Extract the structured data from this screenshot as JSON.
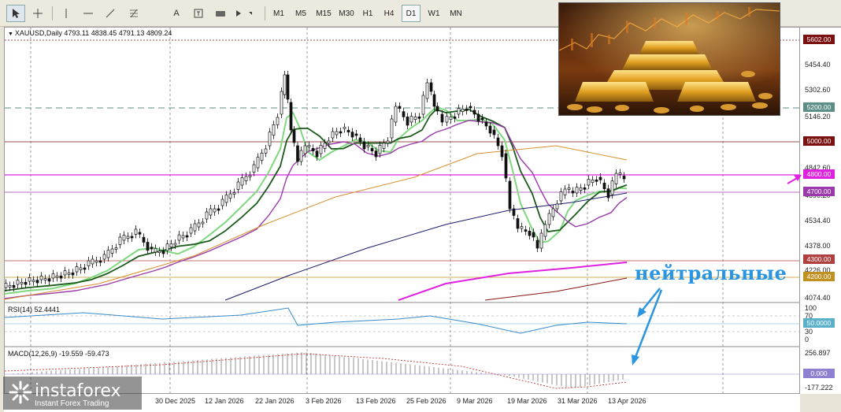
{
  "toolbar": {
    "tools": [
      "cursor-icon",
      "crosshair-icon",
      "vertical-line-icon",
      "horizontal-line-icon",
      "trendline-icon",
      "fibo-icon",
      "text-icon",
      "label-icon",
      "shapes-icon"
    ],
    "text_tool": "A",
    "timeframes": [
      "M1",
      "M5",
      "M15",
      "M30",
      "H1",
      "H4",
      "D1",
      "W1",
      "MN"
    ],
    "selected_timeframe": "D1"
  },
  "symbol_info": "XAUUSD,Daily  4793.11 4838.45 4791.13 4809.24",
  "rsi_info": "RSI(14) 52.4441",
  "macd_info": "MACD(12,26,9) -19.559 -59.473",
  "price_axis": {
    "ticks": [
      "5454.40",
      "5302.60",
      "5146.20",
      "4842.60",
      "4690.20",
      "4534.40",
      "4378.00",
      "4226.00",
      "4074.40"
    ],
    "levels": [
      {
        "value": "5602.00",
        "color": "#7a1010"
      },
      {
        "value": "5200.00",
        "color": "#5e8f86"
      },
      {
        "value": "5000.00",
        "color": "#7a1010"
      },
      {
        "value": "4800.00",
        "color": "#e020e0"
      },
      {
        "value": "4700.00",
        "color": "#9a3aaa"
      },
      {
        "value": "4300.00",
        "color": "#b04040"
      },
      {
        "value": "4200.00",
        "color": "#c09020"
      }
    ],
    "rsi_ticks": [
      "100",
      "70",
      "50.0000",
      "30",
      "0"
    ],
    "macd_ticks": [
      "256.897",
      "0.000",
      "-177.222"
    ]
  },
  "time_axis": [
    "30 Dec 2025",
    "12 Jan 2026",
    "22 Jan 2026",
    "3 Feb 2026",
    "13 Feb 2026",
    "25 Feb 2026",
    "9 Mar 2026",
    "19 Mar 2026",
    "31 Mar 2026",
    "13 Apr 2026"
  ],
  "annotation": "нейтральные",
  "brand": {
    "name": "instaforex",
    "tagline": "Instant Forex Trading"
  },
  "colors": {
    "annotation": "#2a95e0",
    "ma_dark": "#1a5a1a",
    "ma_light": "#7fd87f",
    "ma_violet": "#9a3aaa",
    "ma_orange": "#d89030",
    "ma_navy": "#1a1a6a",
    "ma_magenta": "#e020e0"
  }
}
